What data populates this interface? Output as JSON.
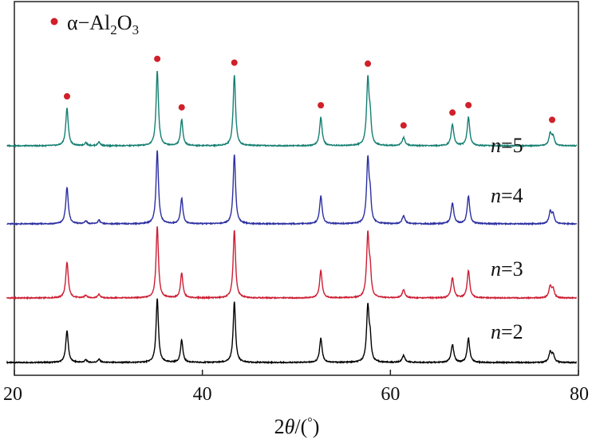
{
  "chart_data": {
    "type": "line",
    "title": "",
    "xlabel": "2θ/(°)",
    "xlabel_parts": {
      "prefix": "2",
      "theta": "θ",
      "suffix": "/(",
      "degree": "°",
      "close": ")"
    },
    "ylabel": "",
    "xlim": [
      20,
      80
    ],
    "x_ticks": [
      20,
      40,
      60,
      80
    ],
    "y_ticks_shown": false,
    "grid": false,
    "legend": {
      "placement": "top-left",
      "marker_color": "#d0202a",
      "parts": {
        "prefix": "α−Al",
        "sub1": "2",
        "mid": "O",
        "sub2": "3"
      }
    },
    "peak_marker_color": "#d0202a",
    "peak_positions_marked": [
      25.6,
      35.2,
      37.8,
      43.4,
      52.6,
      57.6,
      61.4,
      66.6,
      68.3,
      77.2
    ],
    "peaks": [
      {
        "x": 25.6,
        "intensity": 0.5,
        "width": 0.16
      },
      {
        "x": 27.6,
        "intensity": 0.04,
        "width": 0.15
      },
      {
        "x": 29.0,
        "intensity": 0.05,
        "width": 0.15
      },
      {
        "x": 35.2,
        "intensity": 1.0,
        "width": 0.15
      },
      {
        "x": 37.8,
        "intensity": 0.35,
        "width": 0.15
      },
      {
        "x": 43.4,
        "intensity": 0.95,
        "width": 0.15
      },
      {
        "x": 52.6,
        "intensity": 0.38,
        "width": 0.16
      },
      {
        "x": 57.6,
        "intensity": 0.88,
        "width": 0.16
      },
      {
        "x": 57.85,
        "intensity": 0.3,
        "width": 0.12
      },
      {
        "x": 61.4,
        "intensity": 0.11,
        "width": 0.18
      },
      {
        "x": 66.6,
        "intensity": 0.28,
        "width": 0.17
      },
      {
        "x": 68.3,
        "intensity": 0.38,
        "width": 0.16
      },
      {
        "x": 77.0,
        "intensity": 0.16,
        "width": 0.16
      },
      {
        "x": 77.3,
        "intensity": 0.12,
        "width": 0.16
      }
    ],
    "series": [
      {
        "name": "n=2",
        "label_n": "n",
        "label_eq": "=2",
        "color": "#000000"
      },
      {
        "name": "n=3",
        "label_n": "n",
        "label_eq": "=3",
        "color": "#cc1e33"
      },
      {
        "name": "n=4",
        "label_n": "n",
        "label_eq": "=4",
        "color": "#2c2fa0"
      },
      {
        "name": "n=5",
        "label_n": "n",
        "label_eq": "=5",
        "color": "#157f72"
      }
    ]
  }
}
